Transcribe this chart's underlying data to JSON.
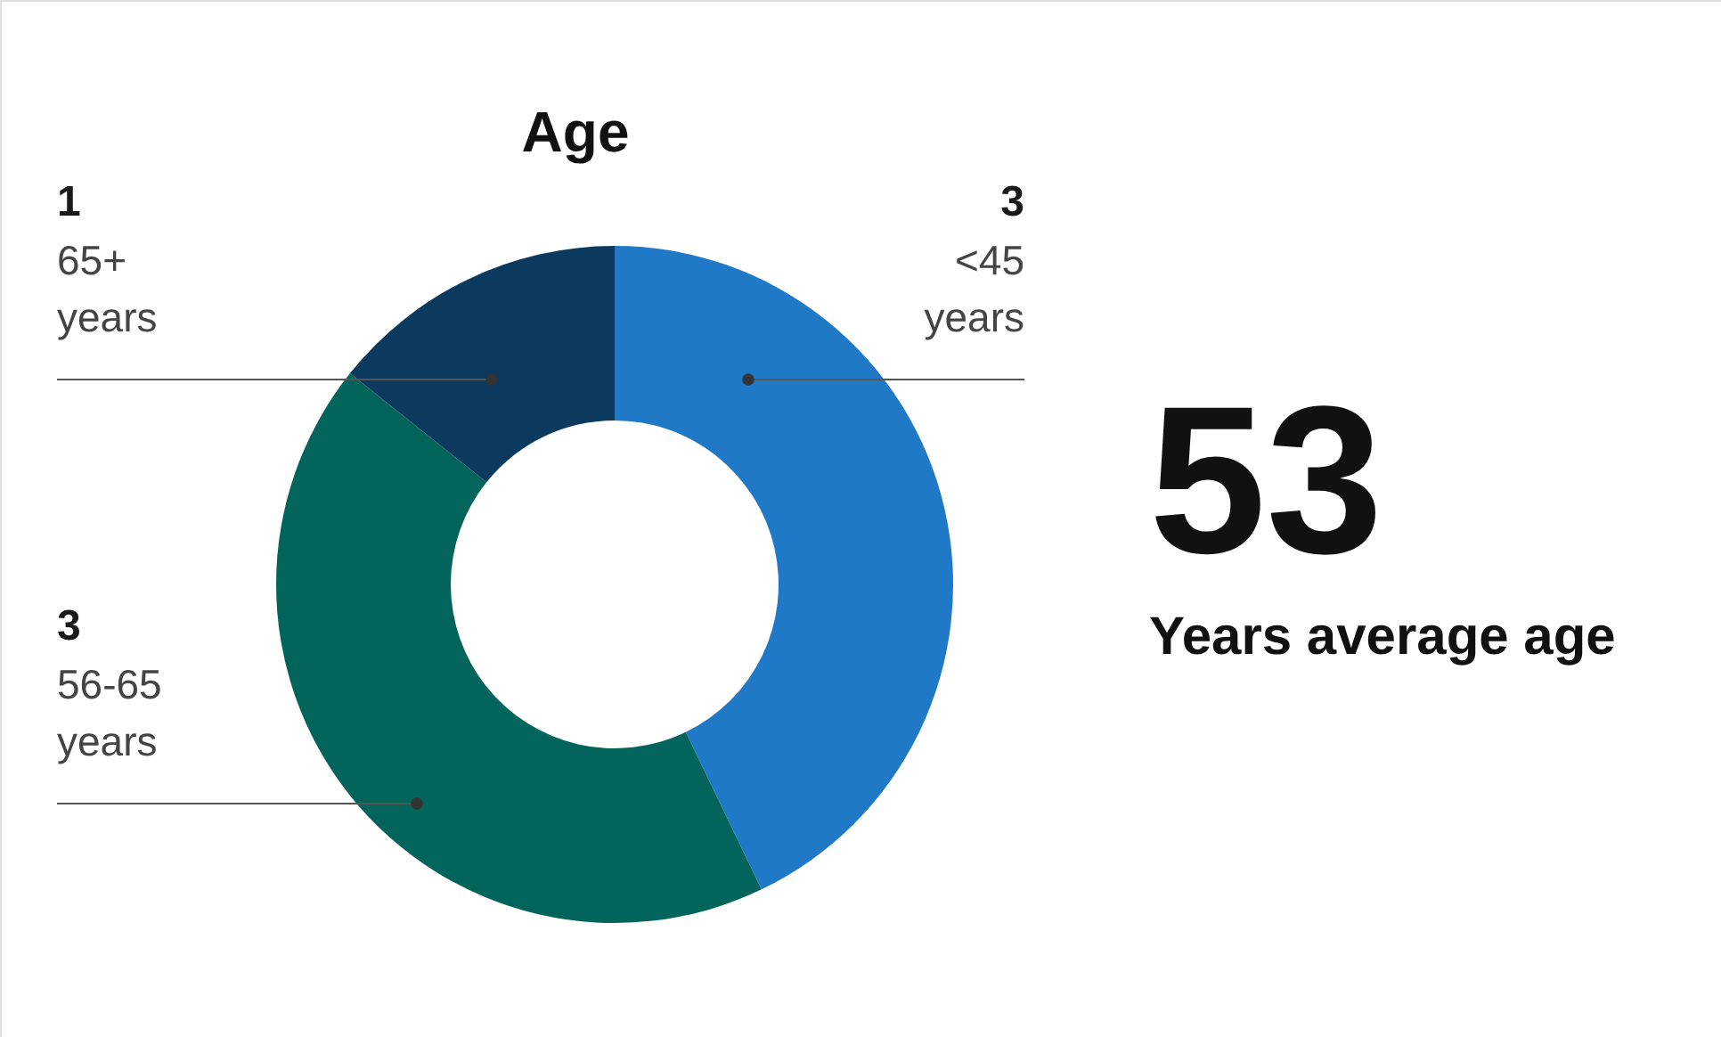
{
  "chart_data": {
    "type": "donut",
    "title": "Age",
    "categories": [
      "<45 years",
      "56-65 years",
      "65+ years"
    ],
    "values": [
      3,
      3,
      1
    ],
    "colors": [
      "#2079c7",
      "#03645c",
      "#0b3a5e"
    ],
    "data_labels": true,
    "annotations": [
      "53",
      "Years average age"
    ]
  }
}
